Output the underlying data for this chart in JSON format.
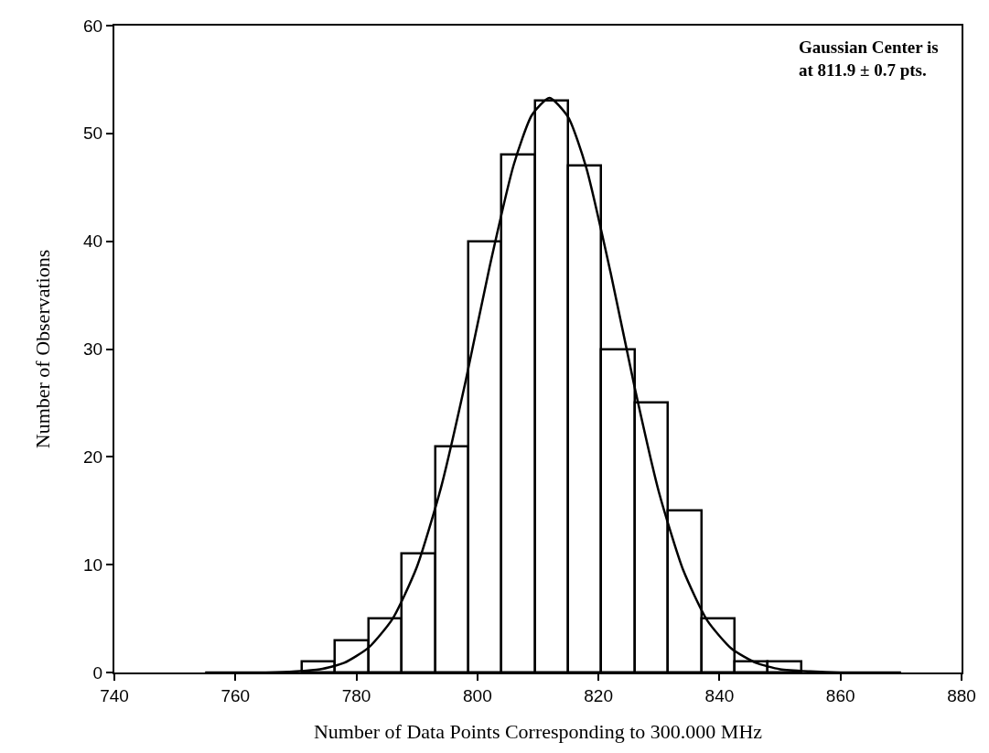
{
  "chart_data": {
    "type": "histogram",
    "xlabel": "Number of Data Points Corresponding to 300.000 MHz",
    "ylabel": "Number of Observations",
    "annotations": [
      "Gaussian Center is\nat 811.9 ± 0.7 pts."
    ],
    "bins": [
      771,
      776.5,
      782,
      787.5,
      793,
      798.5,
      804,
      809.5,
      815,
      820.5,
      826,
      831.5,
      837,
      842.5,
      848,
      853.5
    ],
    "values": [
      1,
      3,
      5,
      11,
      21,
      40,
      48,
      53,
      47,
      30,
      25,
      15,
      5,
      1,
      1
    ],
    "color": "#000000",
    "series": [
      {
        "type": "line",
        "color": "#000000",
        "x": [
          755,
          760,
          765,
          770,
          774,
          778,
          782,
          786,
          790,
          794,
          798,
          802,
          806,
          809,
          811.9,
          815,
          818,
          822,
          826,
          830,
          834,
          838,
          842,
          846,
          850,
          855,
          860,
          865,
          870
        ],
        "values": [
          0,
          0,
          0,
          0.1,
          0.3,
          0.9,
          2.3,
          5.0,
          9.8,
          17.2,
          26.9,
          37.6,
          47.1,
          51.7,
          53.3,
          51.5,
          46.8,
          37.1,
          26.4,
          16.7,
          9.5,
          4.8,
          2.2,
          0.9,
          0.3,
          0.1,
          0,
          0,
          0
        ]
      }
    ],
    "xlim": [
      740,
      880
    ],
    "xticks": [
      740,
      760,
      780,
      800,
      820,
      840,
      860,
      880
    ],
    "ylim": [
      0,
      60
    ],
    "yticks": [
      0,
      10,
      20,
      30,
      40,
      50,
      60
    ],
    "marker": "none",
    "line_style": "solid"
  }
}
